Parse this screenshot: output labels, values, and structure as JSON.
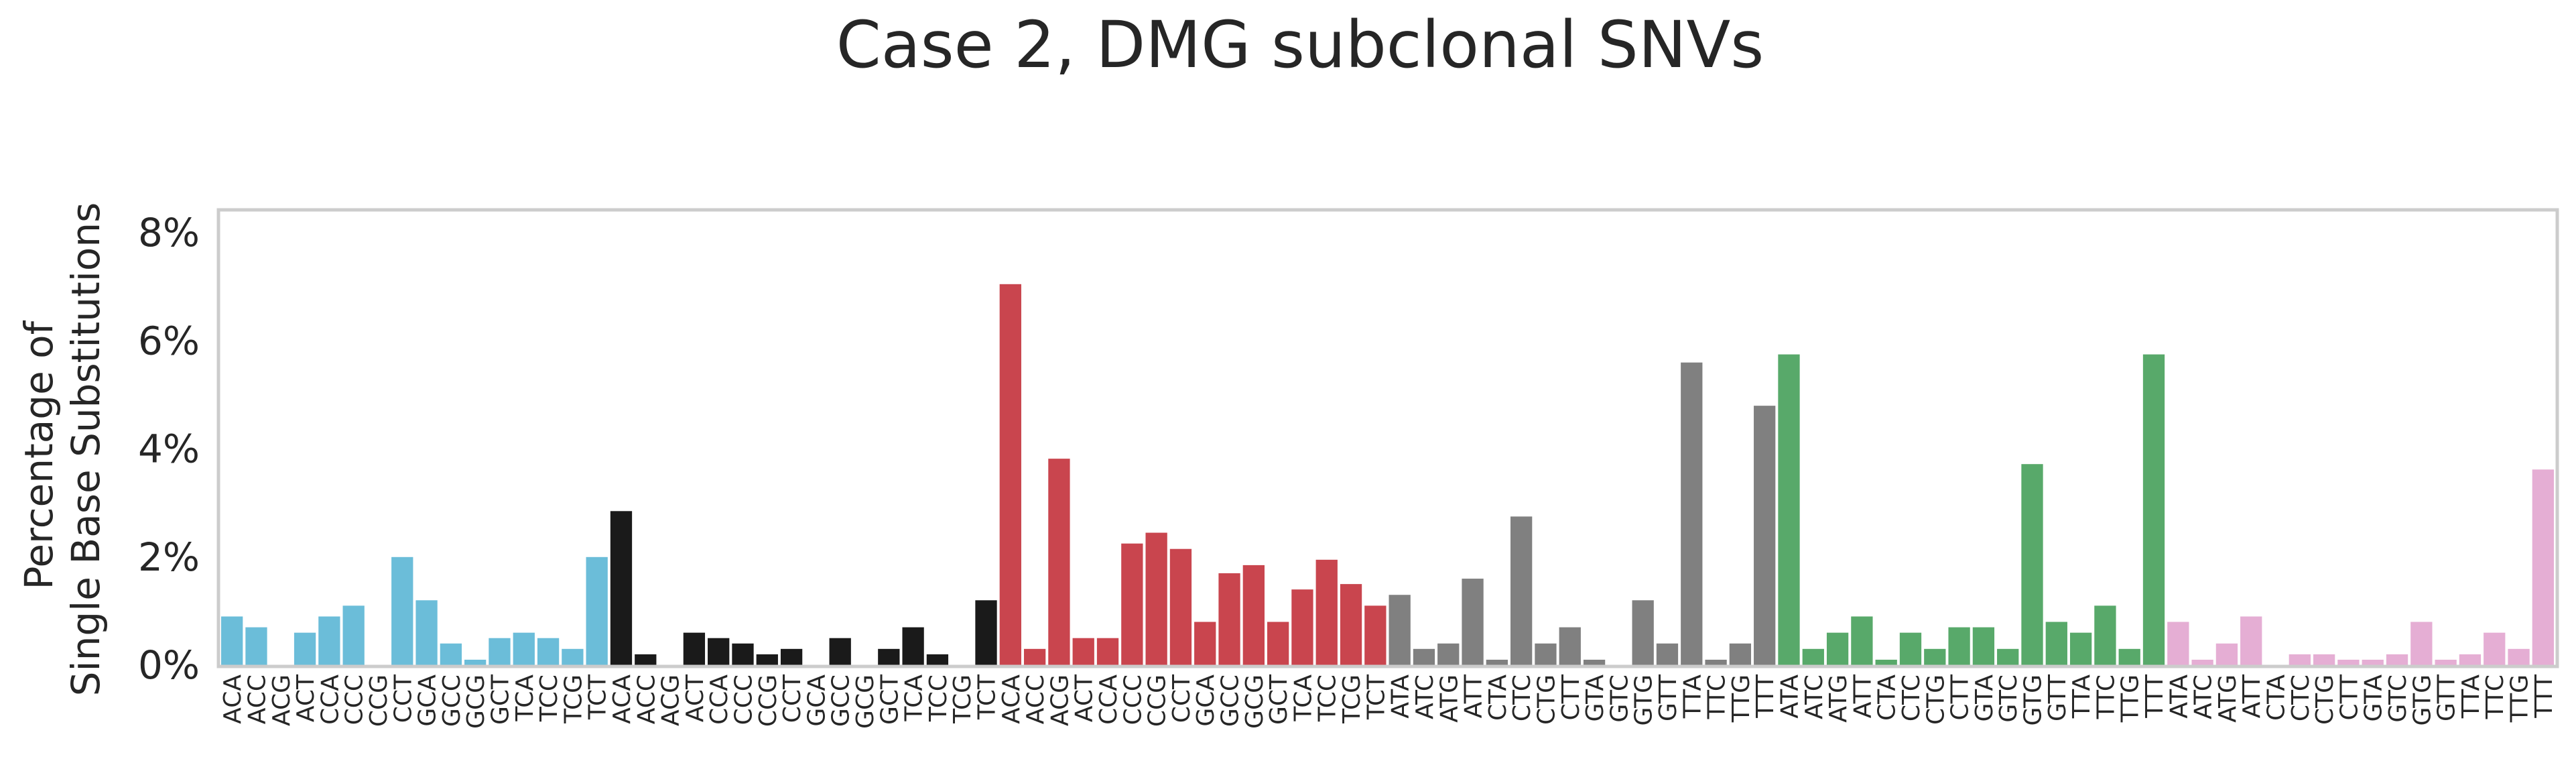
{
  "chart_data": {
    "type": "bar",
    "title": "Case 2, DMG subclonal SNVs",
    "ylabel_lines": [
      "Percentage of",
      "Single Base Substitutions"
    ],
    "ylim": [
      0,
      8.4
    ],
    "yticks": [
      0,
      2,
      4,
      6,
      8
    ],
    "ytick_suffix": "%",
    "grid": false,
    "categories": [
      "ACA",
      "ACC",
      "ACG",
      "ACT",
      "CCA",
      "CCC",
      "CCG",
      "CCT",
      "GCA",
      "GCC",
      "GCG",
      "GCT",
      "TCA",
      "TCC",
      "TCG",
      "TCT",
      "ACA",
      "ACC",
      "ACG",
      "ACT",
      "CCA",
      "CCC",
      "CCG",
      "CCT",
      "GCA",
      "GCC",
      "GCG",
      "GCT",
      "TCA",
      "TCC",
      "TCG",
      "TCT",
      "ACA",
      "ACC",
      "ACG",
      "ACT",
      "CCA",
      "CCC",
      "CCG",
      "CCT",
      "GCA",
      "GCC",
      "GCG",
      "GCT",
      "TCA",
      "TCC",
      "TCG",
      "TCT",
      "ATA",
      "ATC",
      "ATG",
      "ATT",
      "CTA",
      "CTC",
      "CTG",
      "CTT",
      "GTA",
      "GTC",
      "GTG",
      "GTT",
      "TTA",
      "TTC",
      "TTG",
      "TTT",
      "ATA",
      "ATC",
      "ATG",
      "ATT",
      "CTA",
      "CTC",
      "CTG",
      "CTT",
      "GTA",
      "GTC",
      "GTG",
      "GTT",
      "TTA",
      "TTC",
      "TTG",
      "TTT",
      "ATA",
      "ATC",
      "ATG",
      "ATT",
      "CTA",
      "CTC",
      "CTG",
      "CTT",
      "GTA",
      "GTC",
      "GTG",
      "GTT",
      "TTA",
      "TTC",
      "TTG",
      "TTT"
    ],
    "groups": [
      {
        "color": "#6bbdd9",
        "values": [
          0.9,
          0.7,
          0.0,
          0.6,
          0.9,
          1.1,
          0.0,
          2.0,
          1.2,
          0.4,
          0.1,
          0.5,
          0.6,
          0.5,
          0.3,
          2.0
        ]
      },
      {
        "color": "#1a1a1a",
        "values": [
          2.85,
          0.2,
          0.0,
          0.6,
          0.5,
          0.4,
          0.2,
          0.3,
          0.0,
          0.5,
          0.0,
          0.3,
          0.7,
          0.2,
          0.0,
          1.2
        ]
      },
      {
        "color": "#c9454e",
        "values": [
          7.05,
          0.3,
          3.82,
          0.5,
          0.5,
          2.25,
          2.45,
          2.15,
          0.8,
          1.7,
          1.85,
          0.8,
          1.4,
          1.95,
          1.5,
          1.1
        ]
      },
      {
        "color": "#808080",
        "values": [
          1.3,
          0.3,
          0.4,
          1.6,
          0.1,
          2.75,
          0.4,
          0.7,
          0.1,
          0.0,
          1.2,
          0.4,
          5.6,
          0.1,
          0.4,
          4.8
        ]
      },
      {
        "color": "#58a96a",
        "values": [
          5.75,
          0.3,
          0.6,
          0.9,
          0.1,
          0.6,
          0.3,
          0.7,
          0.7,
          0.3,
          3.72,
          0.8,
          0.6,
          1.1,
          0.3,
          5.75
        ]
      },
      {
        "color": "#e5aed4",
        "values": [
          0.8,
          0.1,
          0.4,
          0.9,
          0.0,
          0.2,
          0.2,
          0.1,
          0.1,
          0.2,
          0.8,
          0.1,
          0.2,
          0.6,
          0.3,
          3.62
        ]
      }
    ]
  }
}
